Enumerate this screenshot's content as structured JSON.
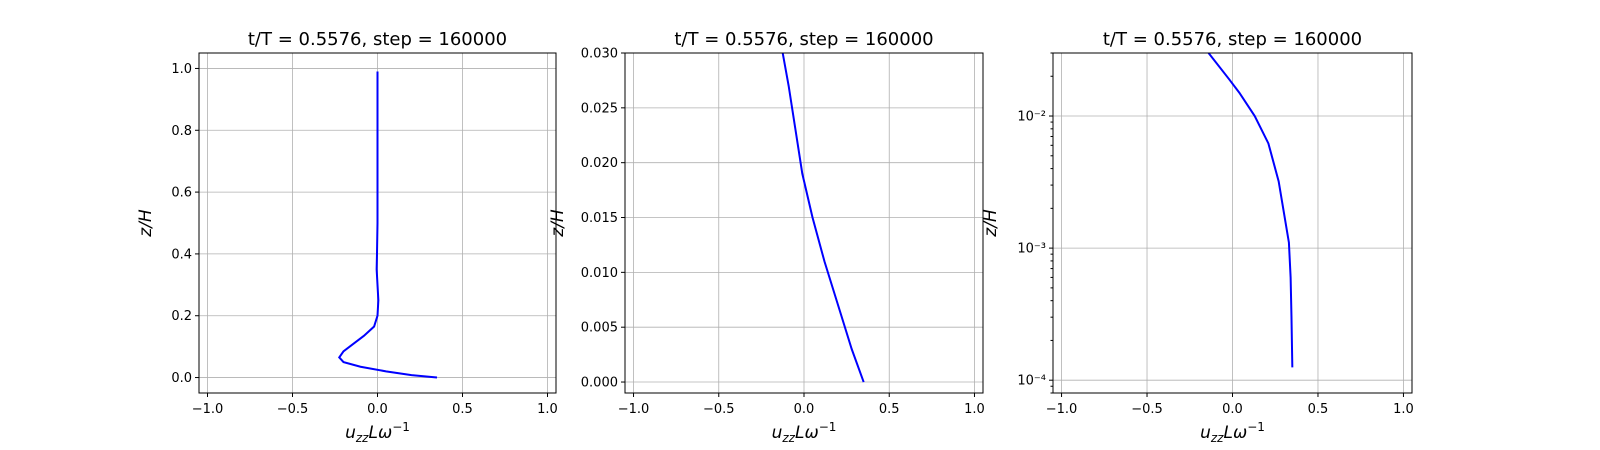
{
  "chart_data": [
    {
      "type": "line",
      "title": "t/T = 0.5576, step = 160000",
      "xlabel": "u_zz L ω^-1",
      "ylabel": "z/H",
      "xlim": [
        -1.05,
        1.05
      ],
      "ylim": [
        -0.05,
        1.05
      ],
      "yscale": "linear",
      "grid": true,
      "xticks": [
        -1.0,
        -0.5,
        0.0,
        0.5,
        1.0
      ],
      "xtick_labels": [
        "−1.0",
        "−0.5",
        "0.0",
        "0.5",
        "1.0"
      ],
      "yticks": [
        0.0,
        0.2,
        0.4,
        0.6,
        0.8,
        1.0
      ],
      "ytick_labels": [
        "0.0",
        "0.2",
        "0.4",
        "0.6",
        "0.8",
        "1.0"
      ],
      "series": [
        {
          "color": "#0000ff",
          "x": [
            0.35,
            0.2,
            0.05,
            -0.1,
            -0.2,
            -0.225,
            -0.2,
            -0.14,
            -0.08,
            -0.02,
            0.0,
            0.005,
            0.0,
            -0.005,
            -0.003,
            0.0,
            0.0,
            0.0,
            0.0,
            0.0
          ],
          "y": [
            0.0,
            0.008,
            0.02,
            0.035,
            0.05,
            0.065,
            0.085,
            0.11,
            0.135,
            0.165,
            0.2,
            0.25,
            0.3,
            0.35,
            0.4,
            0.5,
            0.6,
            0.7,
            0.8,
            0.99
          ]
        }
      ]
    },
    {
      "type": "line",
      "title": "t/T = 0.5576, step = 160000",
      "xlabel": "u_zz L ω^-1",
      "ylabel": "z/H",
      "xlim": [
        -1.05,
        1.05
      ],
      "ylim": [
        -0.001,
        0.03
      ],
      "yscale": "linear",
      "grid": true,
      "xticks": [
        -1.0,
        -0.5,
        0.0,
        0.5,
        1.0
      ],
      "xtick_labels": [
        "−1.0",
        "−0.5",
        "0.0",
        "0.5",
        "1.0"
      ],
      "yticks": [
        0.0,
        0.005,
        0.01,
        0.015,
        0.02,
        0.025,
        0.03
      ],
      "ytick_labels": [
        "0.000",
        "0.005",
        "0.010",
        "0.015",
        "0.020",
        "0.025",
        "0.030"
      ],
      "series": [
        {
          "color": "#0000ff",
          "x": [
            0.35,
            0.28,
            0.2,
            0.12,
            0.05,
            -0.01,
            -0.05,
            -0.09,
            -0.125
          ],
          "y": [
            0.0,
            0.003,
            0.007,
            0.011,
            0.015,
            0.019,
            0.023,
            0.027,
            0.03
          ]
        }
      ]
    },
    {
      "type": "line",
      "title": "t/T = 0.5576, step = 160000",
      "xlabel": "u_zz L ω^-1",
      "ylabel": "z/H",
      "xlim": [
        -1.05,
        1.05
      ],
      "ylim": [
        8e-05,
        0.03
      ],
      "yscale": "log",
      "grid": true,
      "xticks": [
        -1.0,
        -0.5,
        0.0,
        0.5,
        1.0
      ],
      "xtick_labels": [
        "−1.0",
        "−0.5",
        "0.0",
        "0.5",
        "1.0"
      ],
      "yticks": [
        0.0001,
        0.001,
        0.01
      ],
      "ytick_labels": [
        "10⁻⁴",
        "10⁻³",
        "10⁻²"
      ],
      "series": [
        {
          "color": "#0000ff",
          "x": [
            0.35,
            0.345,
            0.34,
            0.33,
            0.27,
            0.21,
            0.13,
            0.04,
            -0.02,
            -0.14
          ],
          "y": [
            0.000125,
            0.0003,
            0.0006,
            0.0011,
            0.0032,
            0.0062,
            0.01,
            0.015,
            0.019,
            0.03
          ]
        }
      ]
    }
  ]
}
